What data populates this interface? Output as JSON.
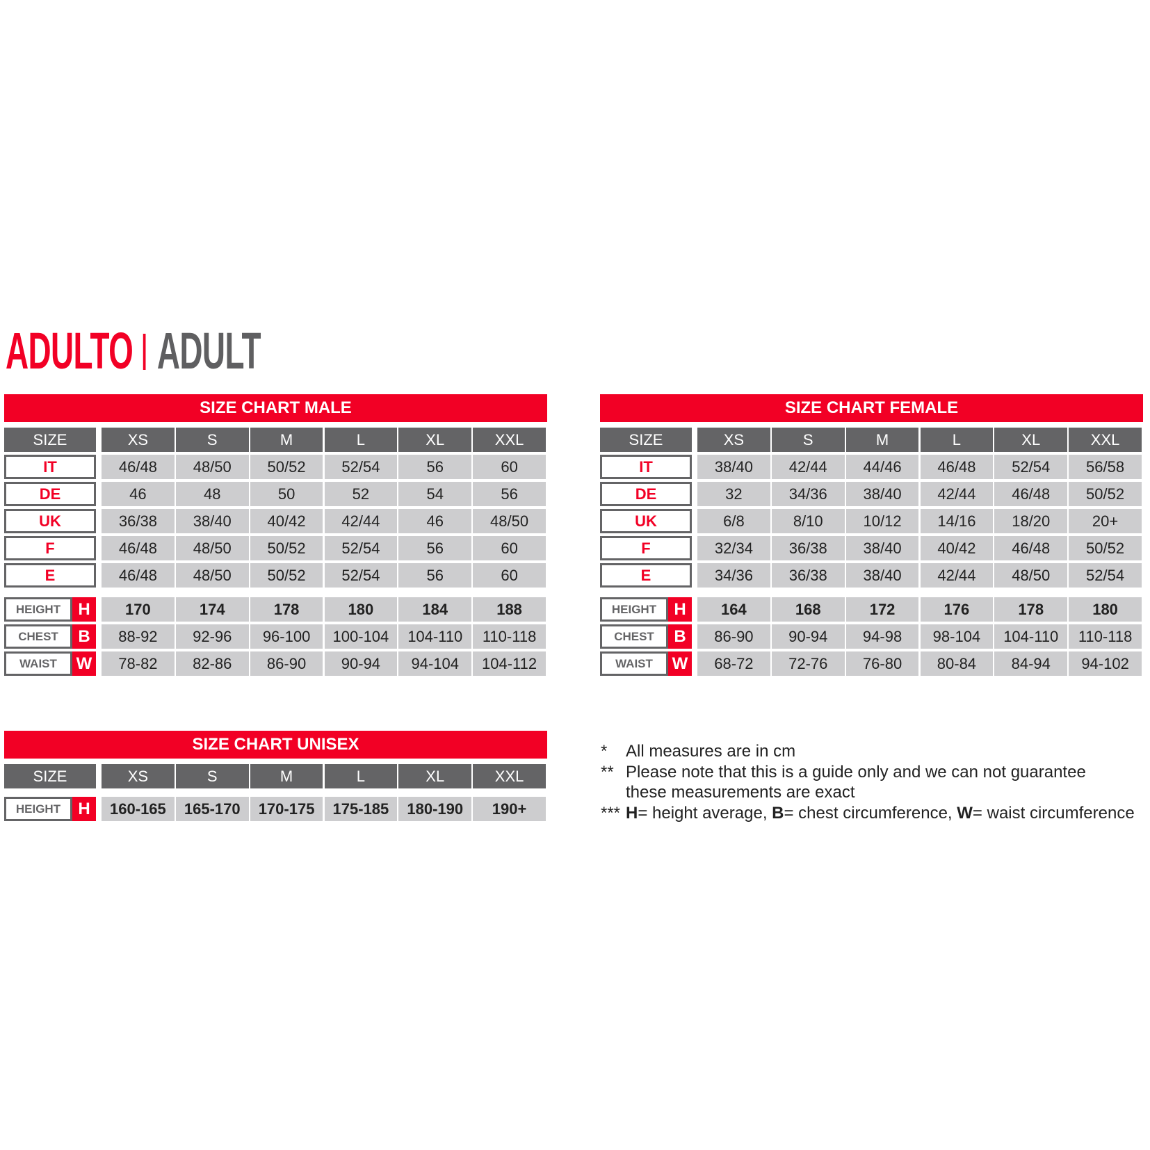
{
  "title": {
    "primary": "ADULTO",
    "secondary": "ADULT"
  },
  "colors": {
    "accent": "#f20025",
    "header": "#646466",
    "cell": "#cdcdcf"
  },
  "tables": {
    "male": {
      "title": "SIZE CHART MALE",
      "size_label": "SIZE",
      "sizes": [
        "XS",
        "S",
        "M",
        "L",
        "XL",
        "XXL"
      ],
      "countries": [
        {
          "label": "IT",
          "values": [
            "46/48",
            "48/50",
            "50/52",
            "52/54",
            "56",
            "60"
          ]
        },
        {
          "label": "DE",
          "values": [
            "46",
            "48",
            "50",
            "52",
            "54",
            "56"
          ]
        },
        {
          "label": "UK",
          "values": [
            "36/38",
            "38/40",
            "40/42",
            "42/44",
            "46",
            "48/50"
          ]
        },
        {
          "label": "F",
          "values": [
            "46/48",
            "48/50",
            "50/52",
            "52/54",
            "56",
            "60"
          ]
        },
        {
          "label": "E",
          "values": [
            "46/48",
            "48/50",
            "50/52",
            "52/54",
            "56",
            "60"
          ]
        }
      ],
      "measures": [
        {
          "label": "HEIGHT",
          "letter": "H",
          "bold": true,
          "values": [
            "170",
            "174",
            "178",
            "180",
            "184",
            "188"
          ]
        },
        {
          "label": "CHEST",
          "letter": "B",
          "bold": false,
          "values": [
            "88-92",
            "92-96",
            "96-100",
            "100-104",
            "104-110",
            "110-118"
          ]
        },
        {
          "label": "WAIST",
          "letter": "W",
          "bold": false,
          "values": [
            "78-82",
            "82-86",
            "86-90",
            "90-94",
            "94-104",
            "104-112"
          ]
        }
      ]
    },
    "female": {
      "title": "SIZE CHART FEMALE",
      "size_label": "SIZE",
      "sizes": [
        "XS",
        "S",
        "M",
        "L",
        "XL",
        "XXL"
      ],
      "countries": [
        {
          "label": "IT",
          "values": [
            "38/40",
            "42/44",
            "44/46",
            "46/48",
            "52/54",
            "56/58"
          ]
        },
        {
          "label": "DE",
          "values": [
            "32",
            "34/36",
            "38/40",
            "42/44",
            "46/48",
            "50/52"
          ]
        },
        {
          "label": "UK",
          "values": [
            "6/8",
            "8/10",
            "10/12",
            "14/16",
            "18/20",
            "20+"
          ]
        },
        {
          "label": "F",
          "values": [
            "32/34",
            "36/38",
            "38/40",
            "40/42",
            "46/48",
            "50/52"
          ]
        },
        {
          "label": "E",
          "values": [
            "34/36",
            "36/38",
            "38/40",
            "42/44",
            "48/50",
            "52/54"
          ]
        }
      ],
      "measures": [
        {
          "label": "HEIGHT",
          "letter": "H",
          "bold": true,
          "values": [
            "164",
            "168",
            "172",
            "176",
            "178",
            "180"
          ]
        },
        {
          "label": "CHEST",
          "letter": "B",
          "bold": false,
          "values": [
            "86-90",
            "90-94",
            "94-98",
            "98-104",
            "104-110",
            "110-118"
          ]
        },
        {
          "label": "WAIST",
          "letter": "W",
          "bold": false,
          "values": [
            "68-72",
            "72-76",
            "76-80",
            "80-84",
            "84-94",
            "94-102"
          ]
        }
      ]
    },
    "unisex": {
      "title": "SIZE CHART UNISEX",
      "size_label": "SIZE",
      "sizes": [
        "XS",
        "S",
        "M",
        "L",
        "XL",
        "XXL"
      ],
      "countries": [],
      "measures": [
        {
          "label": "HEIGHT",
          "letter": "H",
          "bold": true,
          "values": [
            "160-165",
            "165-170",
            "170-175",
            "175-185",
            "180-190",
            "190+"
          ]
        }
      ]
    }
  },
  "notes": [
    {
      "mark": "*",
      "text": "All measures are in cm"
    },
    {
      "mark": "**",
      "text": "Please note that this is a guide only and we can not guarantee"
    },
    {
      "mark": "",
      "text": "these measurements are exact"
    },
    {
      "mark": "***",
      "parts": [
        {
          "b": "H"
        },
        {
          "t": "= height average, "
        },
        {
          "b": "B"
        },
        {
          "t": "= chest circumference, "
        },
        {
          "b": "W"
        },
        {
          "t": "= waist circumference"
        }
      ]
    }
  ]
}
